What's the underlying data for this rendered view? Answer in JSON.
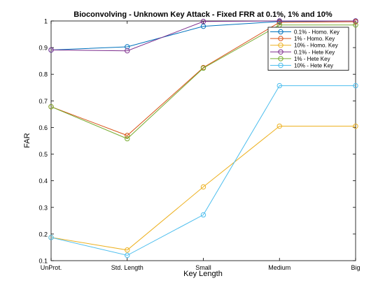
{
  "chart_data": {
    "type": "line",
    "title": "Bioconvolving - Unknown Key Attack - Fixed FRR at 0.1%, 1% and 10%",
    "xlabel": "Key Length",
    "ylabel": "FAR",
    "categories": [
      "UnProt.",
      "Std. Length",
      "Small",
      "Medium",
      "Big"
    ],
    "ylim": [
      0.1,
      1.0
    ],
    "yticks": [
      "0.1",
      "0.2",
      "0.3",
      "0.4",
      "0.5",
      "0.6",
      "0.7",
      "0.8",
      "0.9",
      "1"
    ],
    "grid": false,
    "legend_position": "top-right",
    "series": [
      {
        "name": "0.1% - Homo. Key",
        "color": "#0072bd",
        "values": [
          0.891,
          0.903,
          0.98,
          0.998,
          1.0
        ]
      },
      {
        "name": "1% - Homo. Key",
        "color": "#d95319",
        "values": [
          0.678,
          0.57,
          0.825,
          0.995,
          0.997
        ]
      },
      {
        "name": "10% - Homo. Key",
        "color": "#edb120",
        "values": [
          0.187,
          0.14,
          0.377,
          0.605,
          0.605
        ]
      },
      {
        "name": "0.1% - Hete Key",
        "color": "#7e2f8e",
        "values": [
          0.891,
          0.888,
          0.998,
          1.0,
          1.0
        ]
      },
      {
        "name": "1% - Hete Key",
        "color": "#77ac30",
        "values": [
          0.678,
          0.558,
          0.823,
          0.985,
          0.985
        ]
      },
      {
        "name": "10% - Hete Key",
        "color": "#4dbeee",
        "values": [
          0.187,
          0.12,
          0.272,
          0.757,
          0.757
        ]
      }
    ]
  }
}
